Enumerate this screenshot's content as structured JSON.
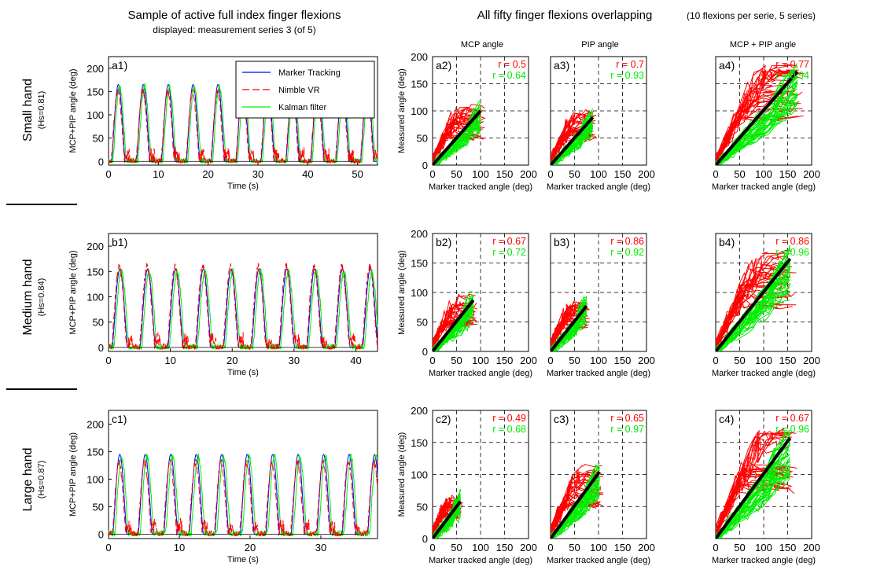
{
  "titles": {
    "left_title": "Sample of active full index finger flexions",
    "left_subtitle": "displayed: measurement series 3 (of 5)",
    "right_title": "All fifty finger flexions overlapping",
    "right_note": "(10 flexions per serie, 5 series)",
    "col_mcp": "MCP angle",
    "col_pip": "PIP angle",
    "col_sum": "MCP + PIP angle"
  },
  "rows": [
    {
      "name": "Small hand",
      "hs": "(Hs=0.81)"
    },
    {
      "name": "Medium hand",
      "hs": "(Hs=0.84)"
    },
    {
      "name": "Large hand",
      "hs": "(Hs=0.87)"
    }
  ],
  "colors": {
    "marker": "#0000ff",
    "nimble": "#ff0000",
    "kalman": "#00ee00",
    "fit": "#000000"
  },
  "legend": [
    "Marker Tracking",
    "Nimble VR",
    "Kalman filter"
  ],
  "time_plot_labels": {
    "xlabel": "Time (s)",
    "ylabel": "MCP+PIP angle (deg)"
  },
  "scatter_plot_labels": {
    "xlabel": "Marker tracked angle (deg)",
    "ylabel": "Measured angle (deg)"
  },
  "chart_data": [
    {
      "id": "a1",
      "type": "line",
      "xlim": [
        0,
        54
      ],
      "ylim": [
        -8,
        225
      ],
      "xticks": [
        0,
        10,
        20,
        30,
        40,
        50
      ],
      "yticks": [
        0,
        50,
        100,
        150,
        200
      ],
      "cycles": 10,
      "period_s": 5.0,
      "peak_marker": 165,
      "peak_nimble": 150,
      "legend_placement": "top-right"
    },
    {
      "id": "b1",
      "type": "line",
      "xlim": [
        0,
        43.5
      ],
      "ylim": [
        -8,
        225
      ],
      "xticks": [
        0,
        10,
        20,
        30,
        40
      ],
      "yticks": [
        0,
        50,
        100,
        150,
        200
      ],
      "cycles": 9,
      "period_s": 4.5,
      "peak_marker": 155,
      "peak_nimble": 160
    },
    {
      "id": "c1",
      "type": "line",
      "xlim": [
        0,
        38
      ],
      "ylim": [
        -8,
        225
      ],
      "xticks": [
        0,
        10,
        20,
        30
      ],
      "yticks": [
        0,
        50,
        100,
        150,
        200
      ],
      "cycles": 10,
      "period_s": 3.6,
      "peak_marker": 145,
      "peak_nimble": 130
    },
    {
      "id": "a2",
      "type": "scatter",
      "xlim": [
        0,
        200
      ],
      "ylim": [
        0,
        200
      ],
      "r_nimble": "r = 0.5",
      "r_kalman": "r = 0.64",
      "fit_x_max": 100,
      "fit_y_max": 100
    },
    {
      "id": "a3",
      "type": "scatter",
      "xlim": [
        0,
        200
      ],
      "ylim": [
        0,
        200
      ],
      "r_nimble": "r = 0.7",
      "r_kalman": "r = 0.93",
      "fit_x_max": 88,
      "fit_y_max": 88
    },
    {
      "id": "a4",
      "type": "scatter",
      "xlim": [
        0,
        200
      ],
      "ylim": [
        0,
        200
      ],
      "r_nimble": "r = 0.77",
      "r_kalman": "r = 0.94",
      "fit_x_max": 170,
      "fit_y_max": 172
    },
    {
      "id": "b2",
      "type": "scatter",
      "xlim": [
        0,
        200
      ],
      "ylim": [
        0,
        200
      ],
      "r_nimble": "r = 0.67",
      "r_kalman": "r = 0.72",
      "fit_x_max": 85,
      "fit_y_max": 87
    },
    {
      "id": "b3",
      "type": "scatter",
      "xlim": [
        0,
        200
      ],
      "ylim": [
        0,
        200
      ],
      "r_nimble": "r = 0.86",
      "r_kalman": "r = 0.92",
      "fit_x_max": 75,
      "fit_y_max": 77
    },
    {
      "id": "b4",
      "type": "scatter",
      "xlim": [
        0,
        200
      ],
      "ylim": [
        0,
        200
      ],
      "r_nimble": "r = 0.86",
      "r_kalman": "r = 0.96",
      "fit_x_max": 155,
      "fit_y_max": 157
    },
    {
      "id": "c2",
      "type": "scatter",
      "xlim": [
        0,
        200
      ],
      "ylim": [
        0,
        200
      ],
      "r_nimble": "r = 0.49",
      "r_kalman": "r = 0.68",
      "fit_x_max": 58,
      "fit_y_max": 58
    },
    {
      "id": "c3",
      "type": "scatter",
      "xlim": [
        0,
        200
      ],
      "ylim": [
        0,
        200
      ],
      "r_nimble": "r = 0.65",
      "r_kalman": "r = 0.97",
      "fit_x_max": 102,
      "fit_y_max": 104
    },
    {
      "id": "c4",
      "type": "scatter",
      "xlim": [
        0,
        200
      ],
      "ylim": [
        0,
        200
      ],
      "r_nimble": "r = 0.67",
      "r_kalman": "r = 0.96",
      "fit_x_max": 155,
      "fit_y_max": 157
    }
  ]
}
